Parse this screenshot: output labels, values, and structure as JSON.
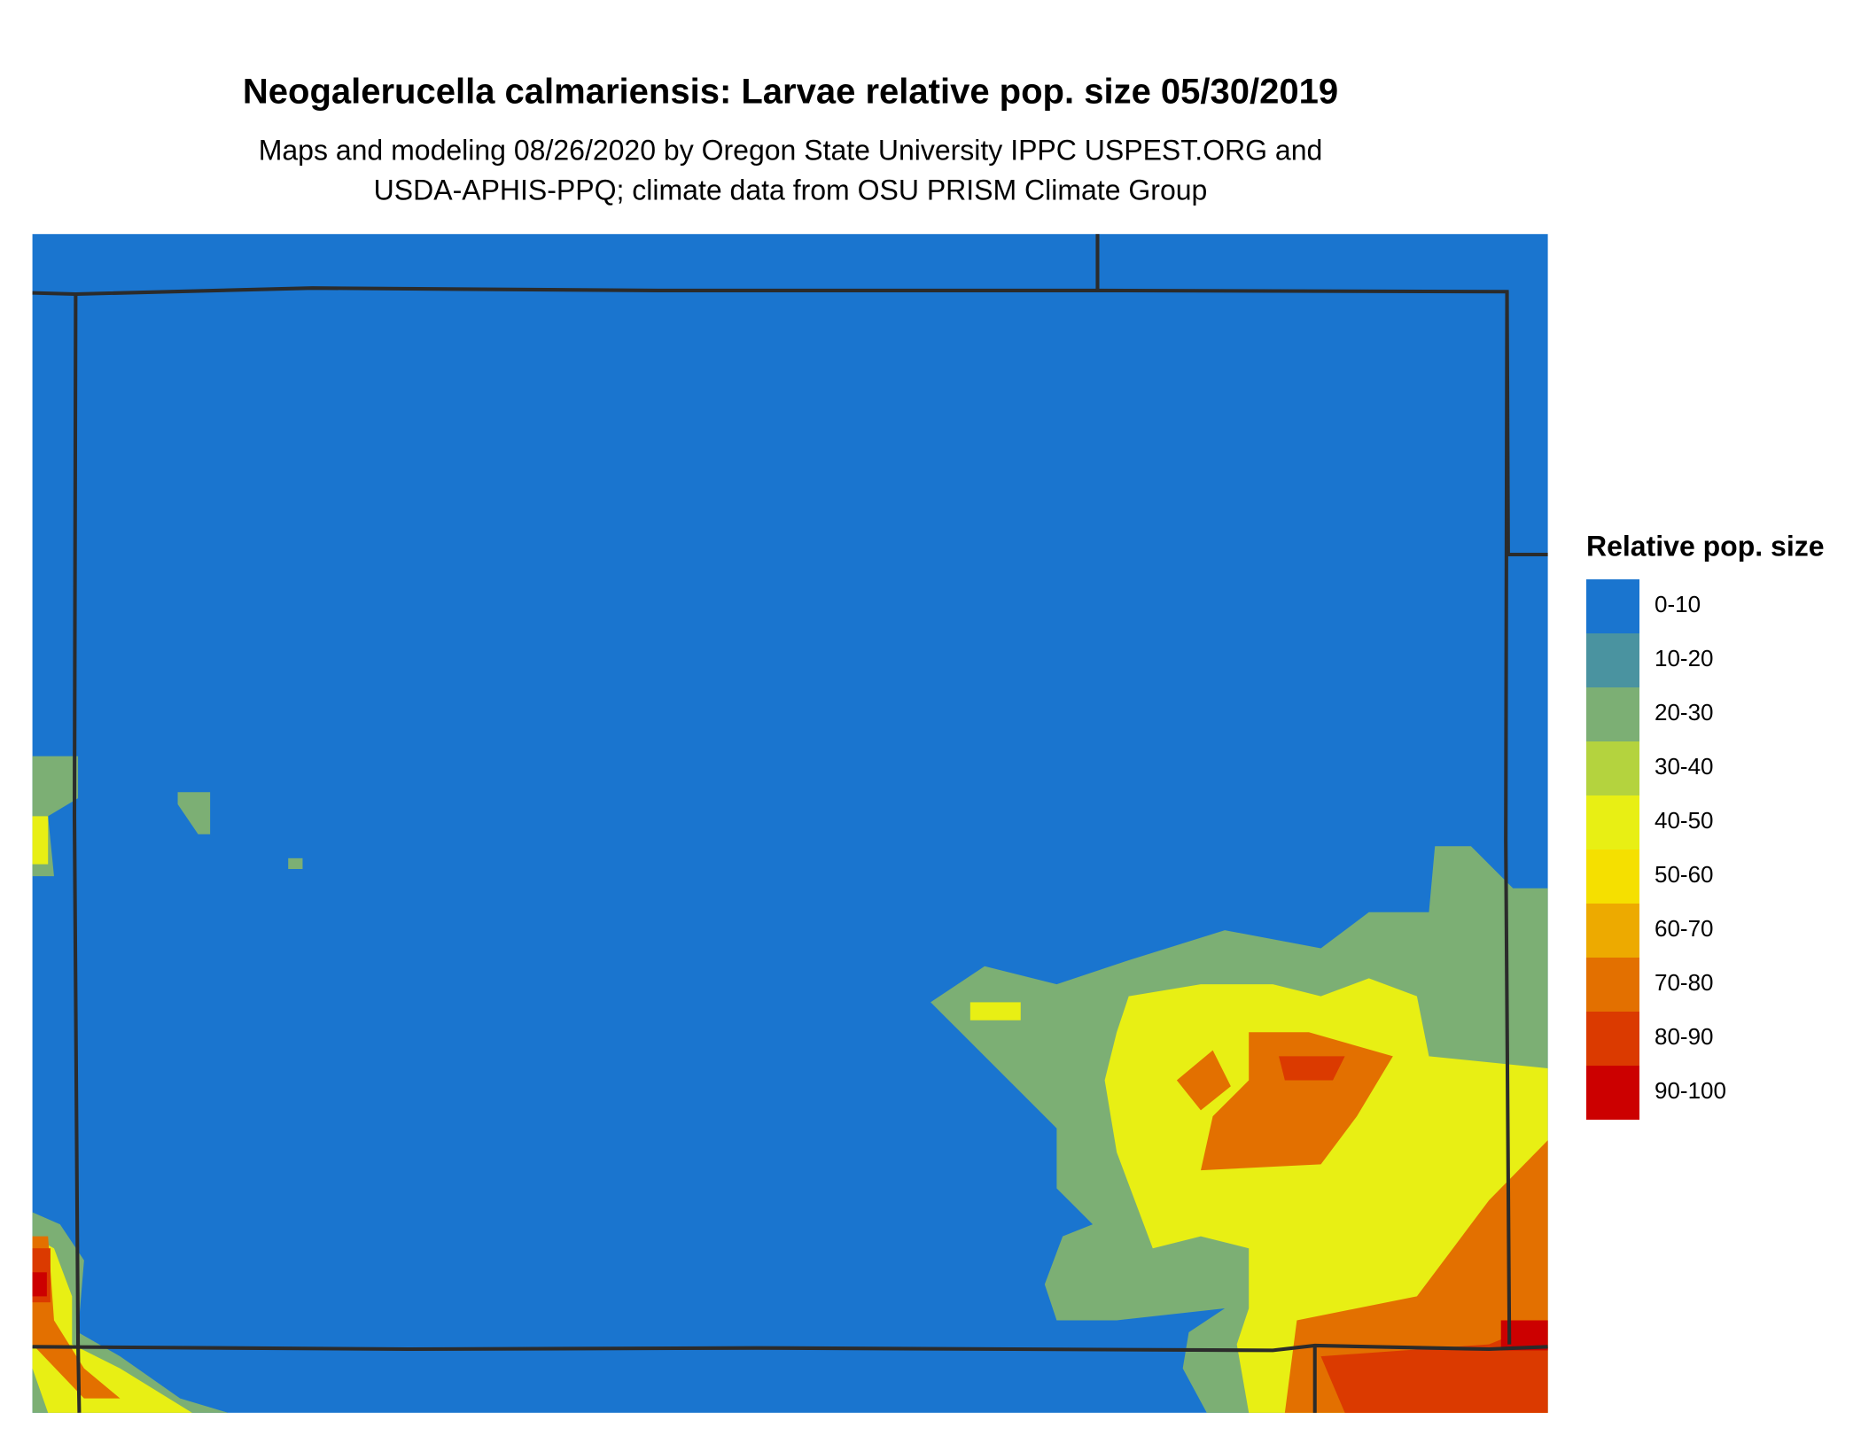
{
  "title": "Neogalerucella calmariensis: Larvae relative pop. size 05/30/2019",
  "subtitle": [
    "Maps and modeling 08/26/2020 by Oregon State University IPPC USPEST.ORG and",
    "USDA-APHIS-PPQ; climate data from OSU PRISM Climate Group"
  ],
  "legend": {
    "title": "Relative pop. size",
    "items": [
      {
        "label": "0-10",
        "color": "#1a75cf"
      },
      {
        "label": "10-20",
        "color": "#4a93a0"
      },
      {
        "label": "20-30",
        "color": "#7caf74"
      },
      {
        "label": "30-40",
        "color": "#b4d33e"
      },
      {
        "label": "40-50",
        "color": "#e8ef14"
      },
      {
        "label": "50-60",
        "color": "#f5e000"
      },
      {
        "label": "60-70",
        "color": "#edaa00"
      },
      {
        "label": "70-80",
        "color": "#e37000"
      },
      {
        "label": "80-90",
        "color": "#db3a00"
      },
      {
        "label": "90-100",
        "color": "#cc0000"
      }
    ]
  }
}
